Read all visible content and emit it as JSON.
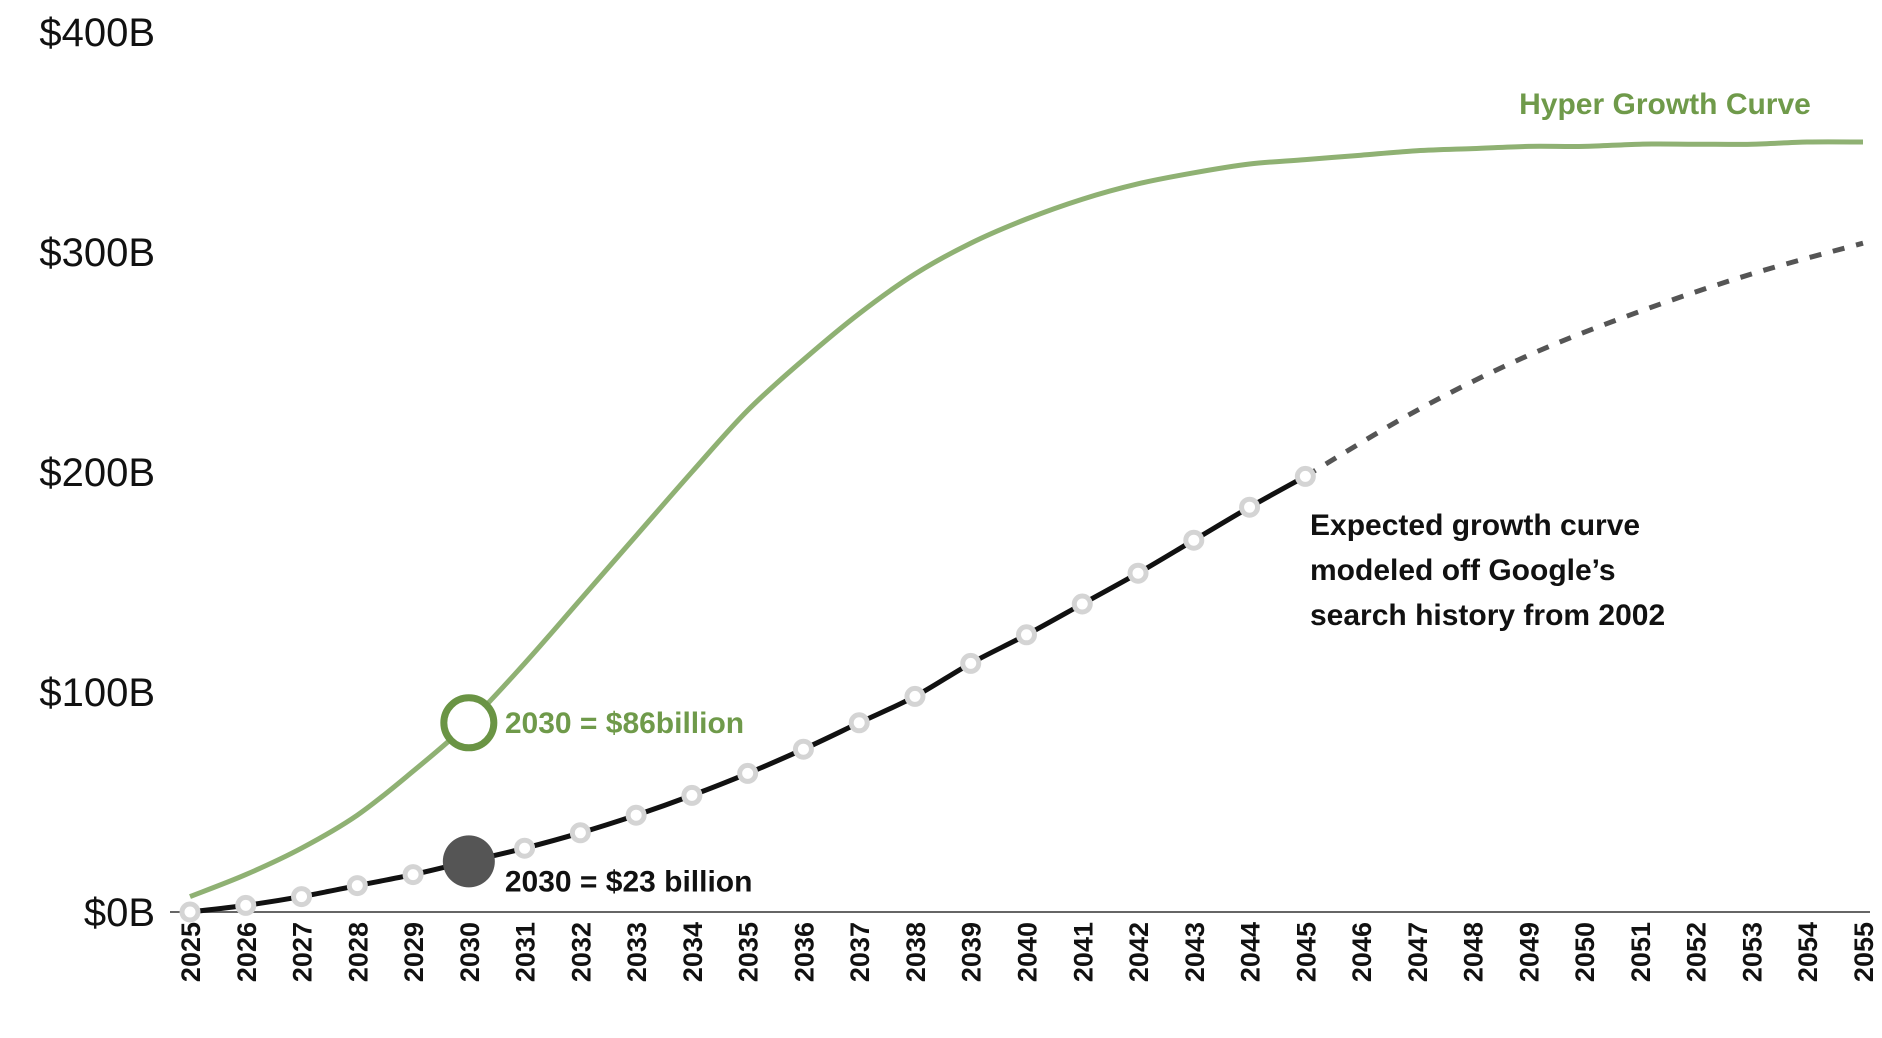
{
  "colors": {
    "hyper": "#8fb173",
    "hyper_marker": "#6a9444",
    "hyper_label": "#6f9a4a",
    "expected": "#111111",
    "projected": "#555555",
    "point": "#d4d4d4",
    "highlight": "#555555",
    "axis": "#666666",
    "text": "#111111"
  },
  "chart_data": {
    "type": "line",
    "title": "",
    "xlabel": "",
    "ylabel": "",
    "ylim": [
      0,
      400
    ],
    "xlim": [
      2025,
      2055
    ],
    "grid": false,
    "y_ticks": [
      {
        "value": 0,
        "label": "$0B"
      },
      {
        "value": 100,
        "label": "$100B"
      },
      {
        "value": 200,
        "label": "$200B"
      },
      {
        "value": 300,
        "label": "$300B"
      },
      {
        "value": 400,
        "label": "$400B"
      }
    ],
    "x": [
      2025,
      2026,
      2027,
      2028,
      2029,
      2030,
      2031,
      2032,
      2033,
      2034,
      2035,
      2036,
      2037,
      2038,
      2039,
      2040,
      2041,
      2042,
      2043,
      2044,
      2045,
      2046,
      2047,
      2048,
      2049,
      2050,
      2051,
      2052,
      2053,
      2054,
      2055
    ],
    "x_tick_labels": [
      "2025",
      "2026",
      "2027",
      "2028",
      "2029",
      "2030",
      "2031",
      "2032",
      "2033",
      "2034",
      "2035",
      "2036",
      "2037",
      "2038",
      "2039",
      "2040",
      "2041",
      "2042",
      "2043",
      "2044",
      "2045",
      "2046",
      "2047",
      "2048",
      "2049",
      "2050",
      "2051",
      "2052",
      "2053",
      "2054",
      "2055"
    ],
    "series": [
      {
        "name": "Hyper Growth Curve",
        "style": "solid",
        "x": [
          2025,
          2026,
          2027,
          2028,
          2029,
          2030,
          2031,
          2032,
          2033,
          2034,
          2035,
          2036,
          2037,
          2038,
          2039,
          2040,
          2041,
          2042,
          2043,
          2044,
          2045,
          2046,
          2047,
          2048,
          2049,
          2050,
          2051,
          2052,
          2053,
          2054,
          2055
        ],
        "values": [
          7,
          17,
          29,
          44,
          64,
          86,
          113,
          142,
          171,
          200,
          228,
          251,
          272,
          290,
          304,
          315,
          324,
          331,
          336,
          340,
          342,
          344,
          346,
          347,
          348,
          348,
          349,
          349,
          349,
          350,
          350
        ]
      },
      {
        "name": "Expected growth curve",
        "style": "solid",
        "markers": true,
        "x": [
          2025,
          2026,
          2027,
          2028,
          2029,
          2030,
          2031,
          2032,
          2033,
          2034,
          2035,
          2036,
          2037,
          2038,
          2039,
          2040,
          2041,
          2042,
          2043,
          2044,
          2045
        ],
        "values": [
          0,
          3,
          7,
          12,
          17,
          23,
          29,
          36,
          44,
          53,
          63,
          74,
          86,
          98,
          113,
          126,
          140,
          154,
          169,
          184,
          198
        ]
      },
      {
        "name": "Expected growth curve (projected)",
        "style": "dashed",
        "x": [
          2045,
          2047,
          2049,
          2051,
          2053,
          2055
        ],
        "values": [
          198,
          228,
          253,
          273,
          290,
          304
        ]
      }
    ],
    "highlights": [
      {
        "series": 0,
        "x": 2030,
        "y": 86,
        "style": "hollow",
        "label": "2030 = $86billion"
      },
      {
        "series": 1,
        "x": 2030,
        "y": 23,
        "style": "filled",
        "label": "2030 = $23 billion"
      }
    ],
    "annotations": {
      "hyper_label": "Hyper Growth Curve",
      "expected_label": [
        "Expected growth curve",
        "modeled off Google’s",
        "search history from 2002"
      ]
    }
  }
}
